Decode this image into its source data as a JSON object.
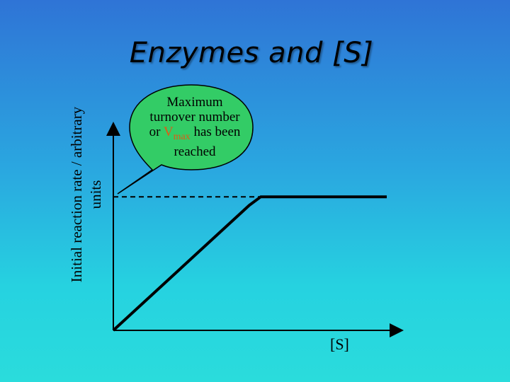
{
  "slide": {
    "title": "Enzymes and [S]"
  },
  "callout": {
    "line1": "Maximum",
    "line2": "turnover number",
    "line3_prefix": "or ",
    "vmax_main": "V",
    "vmax_sub": "max",
    "line3_suffix": " has been",
    "line4": "reached",
    "fill_color": "#33cc66",
    "vmax_color": "#e05a14"
  },
  "chart_data": {
    "type": "line",
    "title": "",
    "xlabel": "[S]",
    "ylabel": "Initial reaction rate / arbitrary units",
    "x": [
      0,
      0.48,
      0.52,
      1.0
    ],
    "y": [
      0,
      0.9,
      0.96,
      0.96
    ],
    "xlim": [
      0,
      1.0
    ],
    "ylim": [
      0,
      1.45
    ],
    "grid": false,
    "reference_line": {
      "y": 0.96,
      "style": "dashed",
      "label": "Vmax"
    }
  }
}
